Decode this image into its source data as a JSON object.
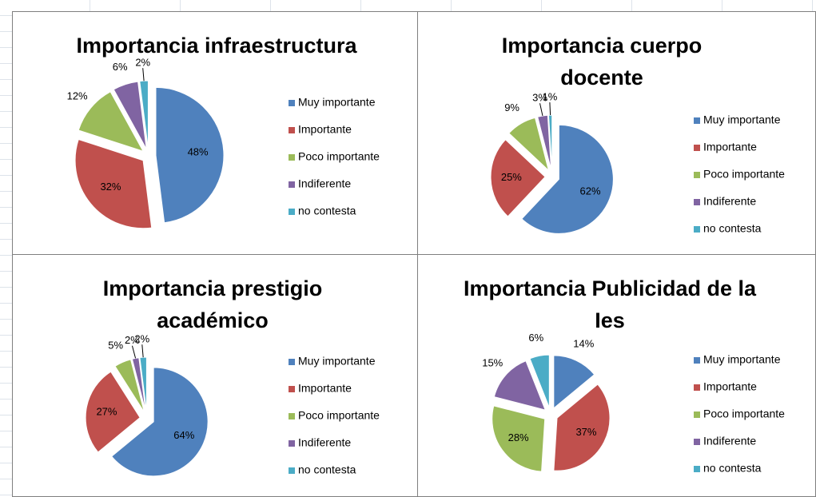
{
  "chart_data": [
    {
      "type": "pie",
      "title": "Importancia infraestructura",
      "categories": [
        "Muy importante",
        "Importante",
        "Poco importante",
        "Indiferente",
        "no contesta"
      ],
      "values": [
        48,
        32,
        12,
        6,
        2
      ],
      "value_labels": [
        "48%",
        "32%",
        "12%",
        "6%",
        "2%"
      ],
      "colors": [
        "#4f81bd",
        "#c0504d",
        "#9bbb59",
        "#8064a2",
        "#4bacc6"
      ],
      "legend": "right"
    },
    {
      "type": "pie",
      "title": "Importancia cuerpo docente",
      "categories": [
        "Muy importante",
        "Importante",
        "Poco importante",
        "Indiferente",
        "no contesta"
      ],
      "values": [
        62,
        25,
        9,
        3,
        1
      ],
      "value_labels": [
        "62%",
        "25%",
        "9%",
        "3%",
        "1%"
      ],
      "colors": [
        "#4f81bd",
        "#c0504d",
        "#9bbb59",
        "#8064a2",
        "#4bacc6"
      ],
      "legend": "right"
    },
    {
      "type": "pie",
      "title": "Importancia prestigio académico",
      "categories": [
        "Muy importante",
        "Importante",
        "Poco importante",
        "Indiferente",
        "no contesta"
      ],
      "values": [
        64,
        27,
        5,
        2,
        2
      ],
      "value_labels": [
        "64%",
        "27%",
        "5%",
        "2%",
        "2%"
      ],
      "colors": [
        "#4f81bd",
        "#c0504d",
        "#9bbb59",
        "#8064a2",
        "#4bacc6"
      ],
      "legend": "right"
    },
    {
      "type": "pie",
      "title": "Importancia Publicidad de la Ies",
      "categories": [
        "Muy importante",
        "Importante",
        "Poco importante",
        "Indiferente",
        "no contesta"
      ],
      "values": [
        14,
        37,
        28,
        15,
        6
      ],
      "value_labels": [
        "14%",
        "37%",
        "28%",
        "15%",
        "6%"
      ],
      "colors": [
        "#4f81bd",
        "#c0504d",
        "#9bbb59",
        "#8064a2",
        "#4bacc6"
      ],
      "legend": "right"
    }
  ]
}
